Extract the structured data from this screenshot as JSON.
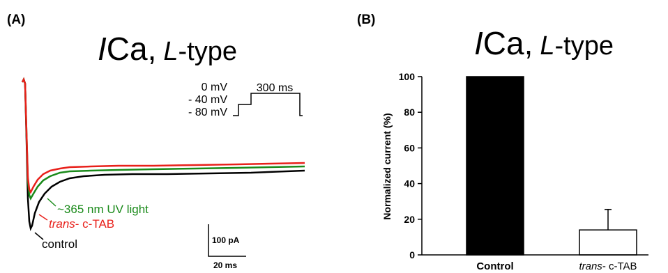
{
  "panel_a": {
    "panel_label": "(A)",
    "title_italic": "I",
    "title_main": "Ca,",
    "title_sub_italic": "L",
    "title_sub_rest": "-type",
    "protocol": {
      "labels": [
        "0 mV",
        "- 40 mV",
        "- 80 mV"
      ],
      "duration_label": "300 ms"
    },
    "trace_labels": {
      "uv": "~365 nm UV light",
      "trans_italic": "trans",
      "trans_rest": "- c-TAB",
      "control": "control"
    },
    "scale_bar": {
      "current": "100 pA",
      "time": "20 ms"
    },
    "colors": {
      "uv": "#1a8a1a",
      "trans": "#e8201a",
      "control": "#000000"
    }
  },
  "chart_data": {
    "type": "bar",
    "panel_label": "(B)",
    "title_italic": "I",
    "title_main": "Ca,",
    "title_sub_italic": "L",
    "title_sub_rest": "-type",
    "categories": [
      "Control",
      "trans- c-TAB"
    ],
    "category_label_parts": [
      {
        "italic": "",
        "rest": "Control"
      },
      {
        "italic": "trans",
        "rest": "- c-TAB"
      }
    ],
    "values": [
      100,
      14
    ],
    "error": [
      0,
      11.5
    ],
    "bar_colors": [
      "#000000",
      "#ffffff"
    ],
    "ylabel": "Normalized current (%)",
    "ylim": [
      0,
      100
    ],
    "yticks": [
      0,
      20,
      40,
      60,
      80,
      100
    ]
  }
}
